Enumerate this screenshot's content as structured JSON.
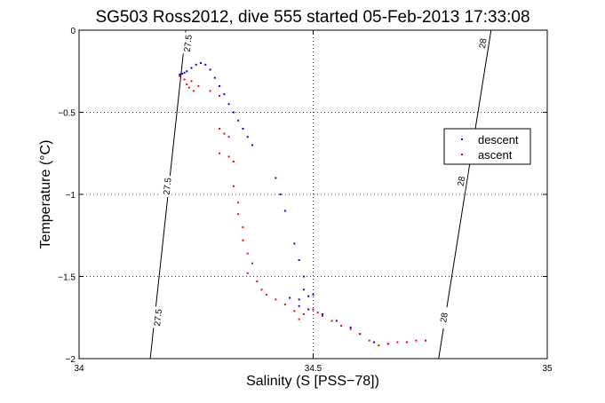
{
  "chart_data": {
    "type": "scatter",
    "title": "SG503 Ross2012, dive 555 started 05-Feb-2013 17:33:08",
    "xlabel": "Salinity (S [PSS−78])",
    "ylabel": "Temperature (°C)",
    "xlim": [
      34,
      35
    ],
    "ylim": [
      -2,
      0
    ],
    "xticks": [
      34,
      34.5,
      35
    ],
    "xtick_labels": [
      "34",
      "34.5",
      "35"
    ],
    "yticks": [
      0,
      -0.5,
      -1,
      -1.5,
      -2
    ],
    "ytick_labels": [
      "0",
      "−0.5",
      "−1",
      "−1.5",
      "−2"
    ],
    "grid": true,
    "legend_position": "right",
    "contours": [
      {
        "label": "27.5",
        "line": [
          [
            34.152,
            -2
          ],
          [
            34.228,
            0
          ]
        ],
        "label_positions": [
          [
            34.168,
            -1.75
          ],
          [
            34.188,
            -0.95
          ],
          [
            34.232,
            -0.08
          ]
        ],
        "label_texts": [
          "27.5",
          "27.5",
          "27.5"
        ]
      },
      {
        "label": "28",
        "line": [
          [
            34.768,
            -2
          ],
          [
            34.88,
            0
          ]
        ],
        "label_positions": [
          [
            34.779,
            -1.75
          ],
          [
            34.816,
            -0.92
          ],
          [
            34.862,
            -0.08
          ]
        ],
        "label_texts": [
          "28",
          "28",
          "28"
        ]
      }
    ],
    "series": [
      {
        "name": "descent",
        "color": "#0000ff",
        "points": [
          [
            34.215,
            -0.27
          ],
          [
            34.22,
            -0.265
          ],
          [
            34.225,
            -0.26
          ],
          [
            34.23,
            -0.25
          ],
          [
            34.24,
            -0.23
          ],
          [
            34.25,
            -0.21
          ],
          [
            34.26,
            -0.2
          ],
          [
            34.27,
            -0.21
          ],
          [
            34.28,
            -0.24
          ],
          [
            34.29,
            -0.29
          ],
          [
            34.3,
            -0.34
          ],
          [
            34.31,
            -0.39
          ],
          [
            34.32,
            -0.45
          ],
          [
            34.33,
            -0.5
          ],
          [
            34.34,
            -0.55
          ],
          [
            34.35,
            -0.6
          ],
          [
            34.36,
            -0.65
          ],
          [
            34.37,
            -0.7
          ],
          [
            34.42,
            -0.9
          ],
          [
            34.43,
            -1.0
          ],
          [
            34.44,
            -1.1
          ],
          [
            34.46,
            -1.3
          ],
          [
            34.47,
            -1.4
          ],
          [
            34.48,
            -1.5
          ],
          [
            34.48,
            -1.58
          ],
          [
            34.45,
            -1.63
          ],
          [
            34.47,
            -1.64
          ],
          [
            34.49,
            -1.62
          ],
          [
            34.5,
            -1.61
          ],
          [
            34.47,
            -1.68
          ],
          [
            34.49,
            -1.7
          ],
          [
            34.52,
            -1.73
          ],
          [
            34.55,
            -1.77
          ],
          [
            34.58,
            -1.81
          ],
          [
            34.6,
            -1.85
          ],
          [
            34.63,
            -1.9
          ],
          [
            34.66,
            -1.91
          ],
          [
            34.7,
            -1.9
          ],
          [
            34.74,
            -1.89
          ]
        ]
      },
      {
        "name": "ascent",
        "color": "#ff0000",
        "points": [
          [
            34.215,
            -0.28
          ],
          [
            34.225,
            -0.3
          ],
          [
            34.23,
            -0.33
          ],
          [
            34.235,
            -0.35
          ],
          [
            34.24,
            -0.31
          ],
          [
            34.245,
            -0.37
          ],
          [
            34.255,
            -0.34
          ],
          [
            34.28,
            -0.37
          ],
          [
            34.3,
            -0.4
          ],
          [
            34.3,
            -0.6
          ],
          [
            34.31,
            -0.63
          ],
          [
            34.32,
            -0.65
          ],
          [
            34.3,
            -0.75
          ],
          [
            34.32,
            -0.77
          ],
          [
            34.33,
            -0.8
          ],
          [
            34.33,
            -0.95
          ],
          [
            34.34,
            -1.05
          ],
          [
            34.34,
            -1.12
          ],
          [
            34.35,
            -1.2
          ],
          [
            34.35,
            -1.28
          ],
          [
            34.36,
            -1.36
          ],
          [
            34.37,
            -1.42
          ],
          [
            34.36,
            -1.48
          ],
          [
            34.38,
            -1.53
          ],
          [
            34.39,
            -1.58
          ],
          [
            34.4,
            -1.61
          ],
          [
            34.42,
            -1.64
          ],
          [
            34.44,
            -1.67
          ],
          [
            34.46,
            -1.71
          ],
          [
            34.48,
            -1.73
          ],
          [
            34.47,
            -1.76
          ],
          [
            34.5,
            -1.7
          ],
          [
            34.51,
            -1.72
          ],
          [
            34.52,
            -1.74
          ],
          [
            34.54,
            -1.77
          ],
          [
            34.56,
            -1.8
          ],
          [
            34.58,
            -1.82
          ],
          [
            34.6,
            -1.85
          ],
          [
            34.62,
            -1.89
          ],
          [
            34.64,
            -1.92
          ],
          [
            34.66,
            -1.91
          ],
          [
            34.68,
            -1.9
          ],
          [
            34.7,
            -1.9
          ],
          [
            34.72,
            -1.89
          ],
          [
            34.74,
            -1.89
          ]
        ]
      }
    ]
  }
}
